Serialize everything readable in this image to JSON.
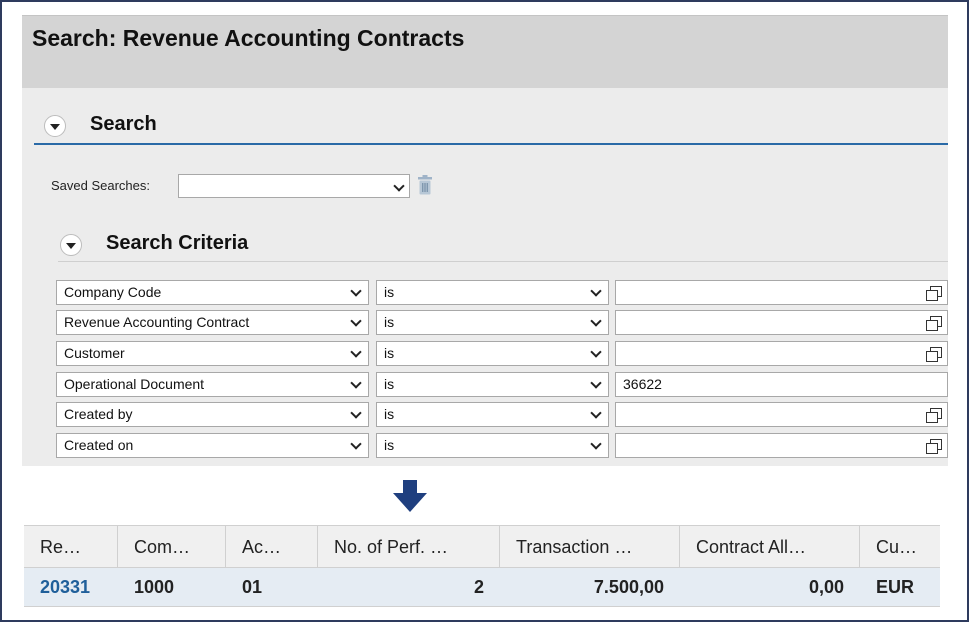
{
  "page": {
    "title": "Search: Revenue Accounting Contracts"
  },
  "search_section": {
    "title": "Search",
    "saved_searches_label": "Saved Searches:",
    "saved_searches_value": ""
  },
  "criteria_section": {
    "title": "Search Criteria",
    "rows": [
      {
        "field": "Company Code",
        "operator": "is",
        "value": ""
      },
      {
        "field": "Revenue Accounting Contract",
        "operator": "is",
        "value": ""
      },
      {
        "field": "Customer",
        "operator": "is",
        "value": ""
      },
      {
        "field": "Operational Document",
        "operator": "is",
        "value": "36622"
      },
      {
        "field": "Created by",
        "operator": "is",
        "value": ""
      },
      {
        "field": "Created on",
        "operator": "is",
        "value": ""
      }
    ]
  },
  "results": {
    "columns": [
      "Re…",
      "Com…",
      "Ac…",
      "No. of Perf. …",
      "Transaction …",
      "Contract All…",
      "Cu…"
    ],
    "rows": [
      [
        "20331",
        "1000",
        "01",
        "2",
        "7.500,00",
        "0,00",
        "EUR"
      ]
    ]
  },
  "colors": {
    "accent": "#2a6aa7",
    "arrow": "#1f3f7f",
    "link": "#1f5f9a"
  },
  "icons": [
    "chevron-down-icon",
    "trash-icon",
    "value-help-icon",
    "down-arrow-icon",
    "collapse-toggle-icon"
  ]
}
